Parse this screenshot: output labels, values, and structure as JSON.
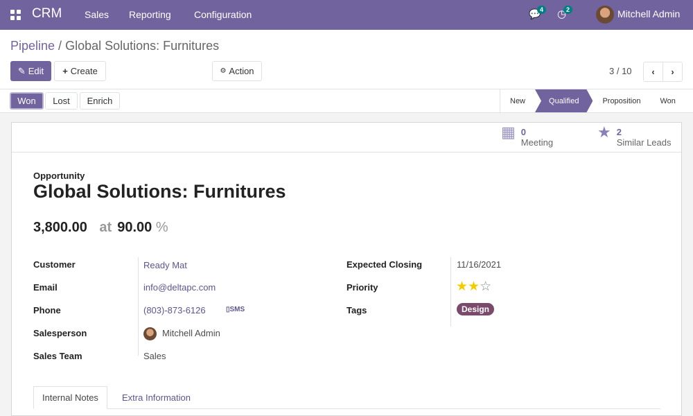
{
  "navbar": {
    "app": "CRM",
    "menu": [
      "Sales",
      "Reporting",
      "Configuration"
    ],
    "messages_count": "4",
    "activities_count": "2",
    "user": "Mitchell Admin"
  },
  "breadcrumb": {
    "parent": "Pipeline",
    "separator": " / ",
    "current": "Global Solutions: Furnitures"
  },
  "toolbar": {
    "edit": "Edit",
    "create": "Create",
    "action": "Action",
    "pager": "3 / 10"
  },
  "status_buttons": [
    "Won",
    "Lost",
    "Enrich"
  ],
  "stages": [
    {
      "label": "New",
      "active": false
    },
    {
      "label": "Qualified",
      "active": true
    },
    {
      "label": "Proposition",
      "active": false
    },
    {
      "label": "Won",
      "active": false
    }
  ],
  "smart_buttons": [
    {
      "count": "0",
      "label": "Meeting",
      "icon": "calendar-icon"
    },
    {
      "count": "2",
      "label": "Similar Leads",
      "icon": "star-icon"
    }
  ],
  "form": {
    "type": "Opportunity",
    "name": "Global Solutions: Furnitures",
    "revenue": "3,800.00",
    "at": "at",
    "probability": "90.00",
    "percent": "%",
    "left": [
      {
        "label": "Customer",
        "value": "Ready Mat"
      },
      {
        "label": "Email",
        "value": "info@deltapc.com"
      },
      {
        "label": "Phone",
        "value": "(803)-873-6126",
        "extra": "SMS"
      },
      {
        "label": "Salesperson",
        "value": "Mitchell Admin"
      },
      {
        "label": "Sales Team",
        "value": "Sales"
      }
    ],
    "right": [
      {
        "label": "Expected Closing",
        "value": "11/16/2021"
      },
      {
        "label": "Priority",
        "stars": 2,
        "max": 3
      },
      {
        "label": "Tags",
        "value": "Design"
      }
    ]
  },
  "tabs": [
    "Internal Notes",
    "Extra Information"
  ],
  "colors": {
    "brand": "#71639e",
    "tag": "#7b4a6a",
    "star": "#f3cc00"
  }
}
